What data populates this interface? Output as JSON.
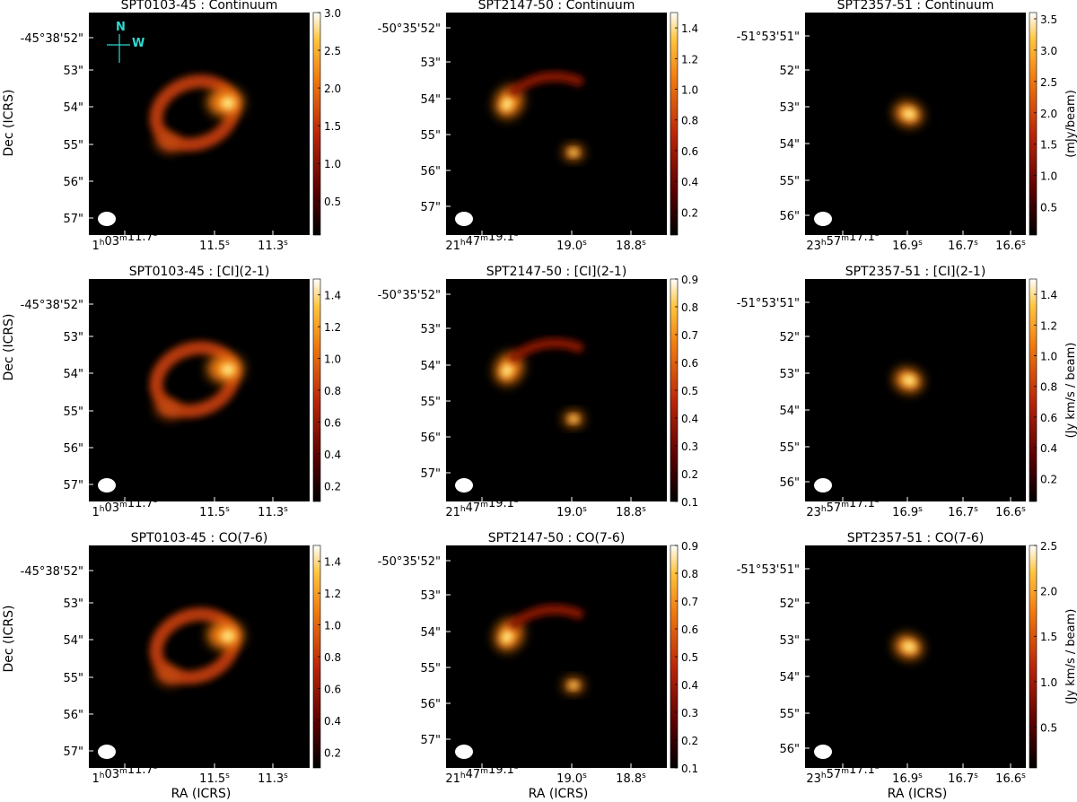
{
  "figure": {
    "x_axis_label": "RA (ICRS)",
    "y_axis_label": "Dec (ICRS)",
    "compass": {
      "north": "N",
      "west": "W"
    }
  },
  "columns": [
    {
      "source": "SPT0103-45",
      "ra_ticks": [
        "1h03m11.7s",
        "11.5s",
        "11.3s"
      ],
      "dec_ticks": [
        "-45°38'52\"",
        "53\"",
        "54\"",
        "55\"",
        "56\"",
        "57\""
      ]
    },
    {
      "source": "SPT2147-50",
      "ra_ticks": [
        "21h47m19.1s",
        "19.0s",
        "18.8s"
      ],
      "dec_ticks": [
        "-50°35'52\"",
        "53\"",
        "54\"",
        "55\"",
        "56\"",
        "57\""
      ]
    },
    {
      "source": "SPT2357-51",
      "ra_ticks": [
        "23h57m17.1s",
        "16.9s",
        "16.7s",
        "16.6s"
      ],
      "dec_ticks": [
        "-51°53'51\"",
        "52\"",
        "53\"",
        "54\"",
        "55\"",
        "56\""
      ]
    }
  ],
  "rows": [
    {
      "label": "Continuum",
      "unit": "(mJy/beam)"
    },
    {
      "label": "[CI](2-1)",
      "unit": "(Jy km/s / beam)"
    },
    {
      "label": "CO(7-6)",
      "unit": "(Jy km/s / beam)"
    }
  ],
  "colors": {
    "colormap": [
      "#000000",
      "#5a0000",
      "#b8260a",
      "#ef7a10",
      "#ffc540",
      "#ffffff"
    ],
    "compass": "#2fd9d2"
  },
  "chart_data": [
    {
      "type": "heatmap",
      "title": "SPT0103-45 : Continuum",
      "colorbar_ticks": [
        "0.5",
        "1.0",
        "1.5",
        "2.0",
        "2.5",
        "3.0"
      ],
      "colorbar_range": [
        0.05,
        3.0
      ],
      "features": [
        {
          "kind": "ring",
          "center_ra_idx": 0.5,
          "peak": 2.9
        }
      ]
    },
    {
      "type": "heatmap",
      "title": "SPT2147-50 : Continuum",
      "colorbar_ticks": [
        "0.2",
        "0.4",
        "0.6",
        "0.8",
        "1.0",
        "1.2",
        "1.4"
      ],
      "colorbar_range": [
        0.05,
        1.5
      ]
    },
    {
      "type": "heatmap",
      "title": "SPT2357-51 : Continuum",
      "colorbar_ticks": [
        "0.5",
        "1.0",
        "1.5",
        "2.0",
        "2.5",
        "3.0",
        "3.5"
      ],
      "colorbar_range": [
        0.05,
        3.6
      ],
      "colorbar_unit": "(mJy/beam)"
    },
    {
      "type": "heatmap",
      "title": "SPT0103-45 : [CI](2-1)",
      "colorbar_ticks": [
        "0.2",
        "0.4",
        "0.6",
        "0.8",
        "1.0",
        "1.2",
        "1.4"
      ],
      "colorbar_range": [
        0.1,
        1.5
      ]
    },
    {
      "type": "heatmap",
      "title": "SPT2147-50 : [CI](2-1)",
      "colorbar_ticks": [
        "0.1",
        "0.2",
        "0.3",
        "0.4",
        "0.5",
        "0.6",
        "0.7",
        "0.8",
        "0.9"
      ],
      "colorbar_range": [
        0.1,
        0.9
      ]
    },
    {
      "type": "heatmap",
      "title": "SPT2357-51 : [CI](2-1)",
      "colorbar_ticks": [
        "0.2",
        "0.4",
        "0.6",
        "0.8",
        "1.0",
        "1.2",
        "1.4"
      ],
      "colorbar_range": [
        0.05,
        1.5
      ],
      "colorbar_unit": "(Jy km/s / beam)"
    },
    {
      "type": "heatmap",
      "title": "SPT0103-45 : CO(7-6)",
      "colorbar_ticks": [
        "0.2",
        "0.4",
        "0.6",
        "0.8",
        "1.0",
        "1.2",
        "1.4"
      ],
      "colorbar_range": [
        0.1,
        1.5
      ]
    },
    {
      "type": "heatmap",
      "title": "SPT2147-50 : CO(7-6)",
      "colorbar_ticks": [
        "0.1",
        "0.2",
        "0.3",
        "0.4",
        "0.5",
        "0.6",
        "0.7",
        "0.8",
        "0.9"
      ],
      "colorbar_range": [
        0.1,
        0.9
      ]
    },
    {
      "type": "heatmap",
      "title": "SPT2357-51 : CO(7-6)",
      "colorbar_ticks": [
        "0.5",
        "1.0",
        "1.5",
        "2.0",
        "2.5"
      ],
      "colorbar_range": [
        0.05,
        2.5
      ],
      "colorbar_unit": "(Jy km/s / beam)"
    }
  ]
}
